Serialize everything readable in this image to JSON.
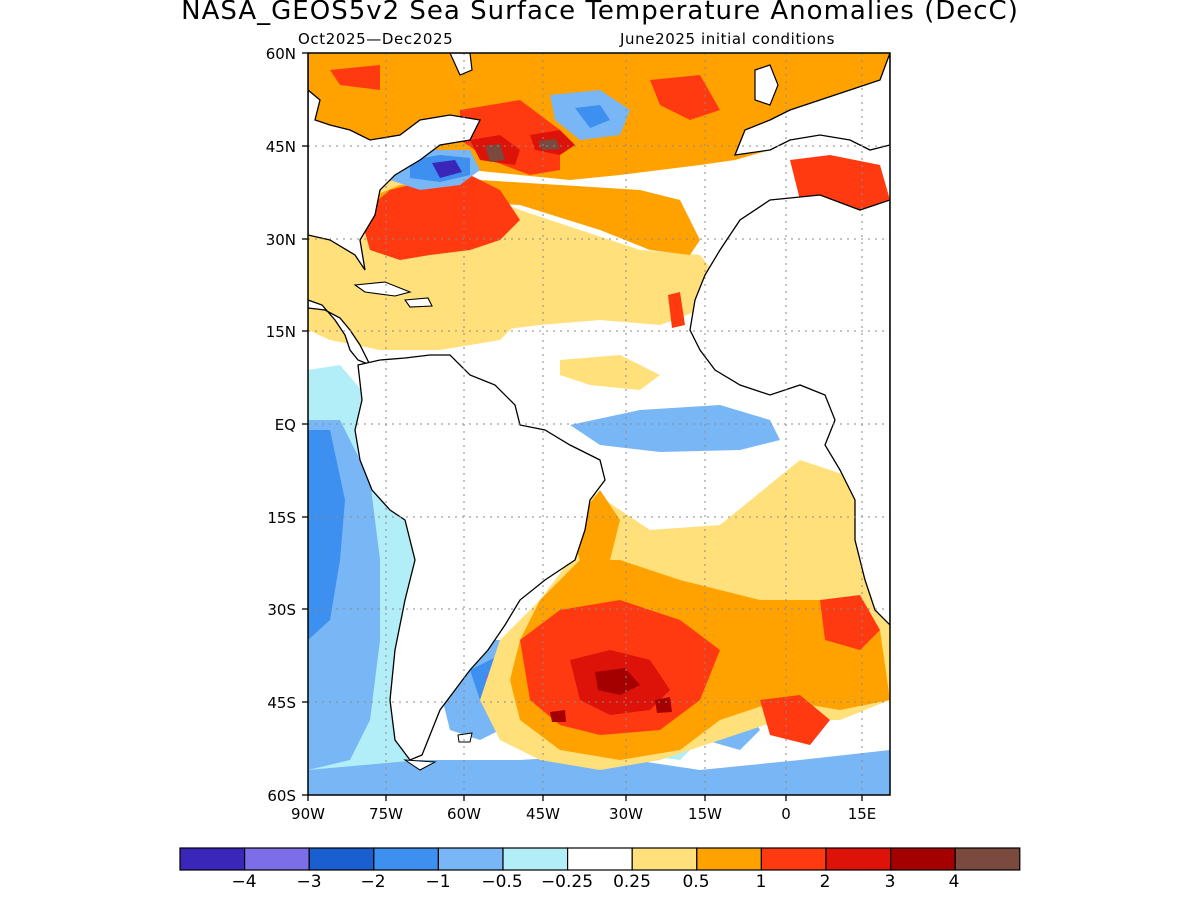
{
  "title": "NASA_GEOS5v2 Sea Surface Temperature Anomalies (DecC)",
  "subtitle_left": "Oct2025—Dec2025",
  "subtitle_right": "June2025 initial conditions",
  "lat_labels": [
    "60N",
    "45N",
    "30N",
    "15N",
    "EQ",
    "15S",
    "30S",
    "45S",
    "60S"
  ],
  "lon_labels": [
    "90W",
    "75W",
    "60W",
    "45W",
    "30W",
    "15W",
    "0",
    "15E"
  ],
  "colorbar": {
    "colors": [
      "#3a26b8",
      "#7b6ee8",
      "#1a5fcf",
      "#3d8ff0",
      "#79b6f5",
      "#b2eef8",
      "#ffffff",
      "#ffe07a",
      "#ffa200",
      "#ff3a10",
      "#dd1208",
      "#a50000",
      "#7b4a3e"
    ],
    "labels": [
      "−4",
      "−3",
      "−2",
      "−1",
      "−0.5",
      "−0.25",
      "0.25",
      "0.5",
      "1",
      "2",
      "3",
      "4"
    ]
  }
}
